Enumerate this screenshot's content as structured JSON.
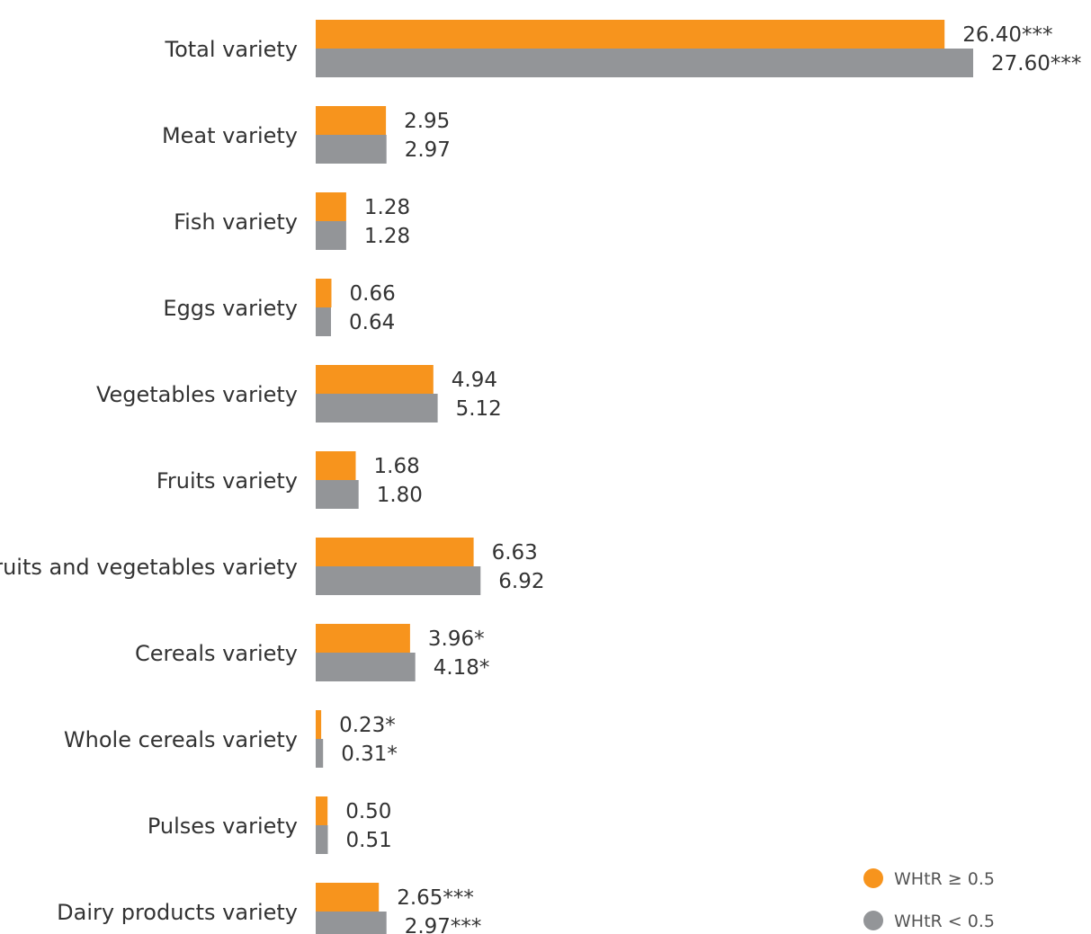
{
  "chart_data": {
    "type": "bar",
    "orientation": "horizontal",
    "categories": [
      "Total variety",
      "Meat variety",
      "Fish variety",
      "Eggs variety",
      "Vegetables variety",
      "Fruits variety",
      "Fruits and vegetables variety",
      "Cereals variety",
      "Whole cereals variety",
      "Pulses variety",
      "Dairy products variety"
    ],
    "series": [
      {
        "name": "WHtR ≥ 0.5",
        "color": "#f7941d",
        "values": [
          26.4,
          2.95,
          1.28,
          0.66,
          4.94,
          1.68,
          6.63,
          3.96,
          0.23,
          0.5,
          2.65
        ],
        "labels": [
          "26.40***",
          "2.95",
          "1.28",
          "0.66",
          "4.94",
          "1.68",
          "6.63",
          "3.96*",
          "0.23*",
          "0.50",
          "2.65***"
        ]
      },
      {
        "name": "WHtR < 0.5",
        "color": "#939598",
        "values": [
          27.6,
          2.97,
          1.28,
          0.64,
          5.12,
          1.8,
          6.92,
          4.18,
          0.31,
          0.51,
          2.97
        ],
        "labels": [
          "27.60***",
          "2.97",
          "1.28",
          "0.64",
          "5.12",
          "1.80",
          "6.92",
          "4.18*",
          "0.31*",
          "0.51",
          "2.97***"
        ]
      }
    ],
    "title": "",
    "xlabel": "",
    "ylabel": "",
    "xlim": [
      0,
      27.6
    ],
    "grid": false,
    "legend_position": "bottom-right"
  }
}
